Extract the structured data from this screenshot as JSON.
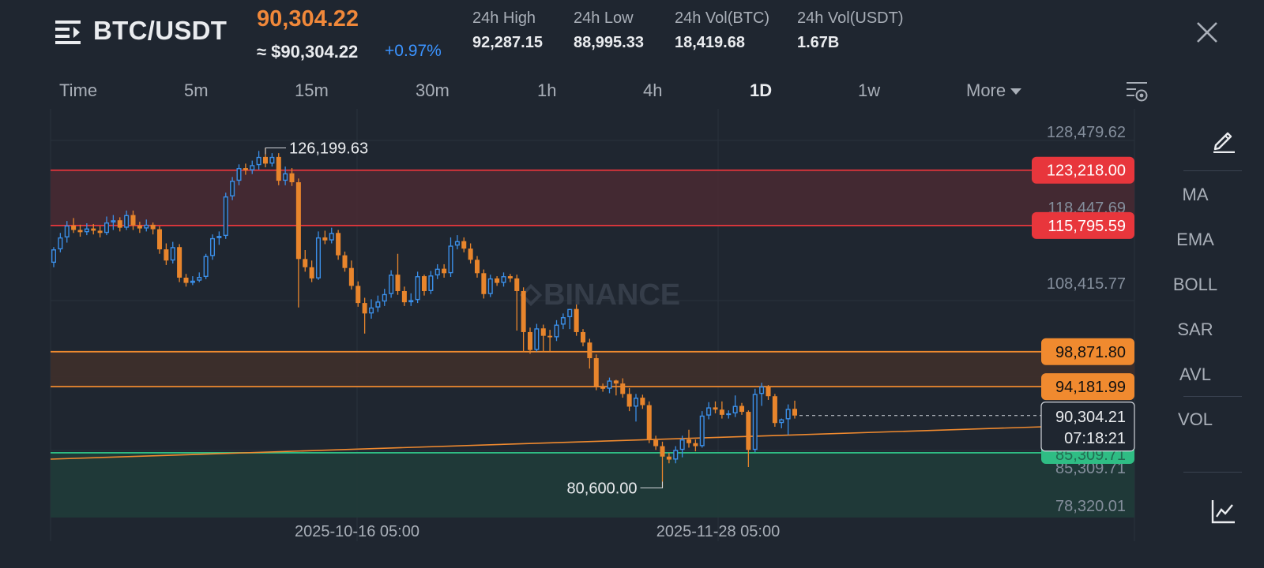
{
  "header": {
    "pair": "BTC/USDT",
    "price": "90,304.22",
    "price_usd": "≈ $90,304.22",
    "change": "+0.97%",
    "stats": [
      {
        "label": "24h High",
        "value": "92,287.15"
      },
      {
        "label": "24h Low",
        "value": "88,995.33"
      },
      {
        "label": "24h Vol(BTC)",
        "value": "18,419.68"
      },
      {
        "label": "24h Vol(USDT)",
        "value": "1.67B"
      }
    ]
  },
  "tabs": [
    "Time",
    "5m",
    "15m",
    "30m",
    "1h",
    "4h",
    "1D",
    "1w",
    "More"
  ],
  "active_tab": "1D",
  "side": {
    "items": [
      "MA",
      "EMA",
      "BOLL",
      "SAR",
      "AVL",
      "VOL"
    ]
  },
  "icons": {
    "menu": "menu-icon",
    "close": "close-icon",
    "settings": "chart-settings-icon",
    "pen": "pen-icon",
    "line": "line-chart-icon"
  },
  "colors": {
    "up": "#3b8fe8",
    "down": "#e8852c",
    "red_zone": "#e8363c",
    "orange_zone": "#f08a2f",
    "green_zone": "#2fbd84",
    "price_accent": "#f0883a"
  },
  "chart_data": {
    "type": "candlestick",
    "watermark": "BINANCE",
    "ylim": [
      78320.01,
      128479.62
    ],
    "y_ticks": [
      "128,479.62",
      "118,447.69",
      "108,415.77",
      "85,309.71",
      "78,320.01"
    ],
    "x_ticks": [
      "2025-10-16 05:00",
      "2025-11-28 05:00"
    ],
    "levels": [
      {
        "label": "123,218.00",
        "value": 123218.0,
        "color": "red"
      },
      {
        "label": "115,795.59",
        "value": 115795.59,
        "color": "red"
      },
      {
        "label": "98,871.80",
        "value": 98871.8,
        "color": "orange"
      },
      {
        "label": "94,181.99",
        "value": 94181.99,
        "color": "orange"
      }
    ],
    "current": {
      "price": "90,304.21",
      "countdown": "07:18:21",
      "value": 90304.21
    },
    "annotations": [
      {
        "label": "126,199.63",
        "value": 126199.63
      },
      {
        "label": "80,600.00",
        "value": 80600.0
      }
    ],
    "candles": [
      [
        110800,
        112600,
        110200,
        112900
      ],
      [
        112600,
        114200,
        112200,
        114800
      ],
      [
        114200,
        115800,
        113500,
        116400
      ],
      [
        115800,
        115200,
        114800,
        116800
      ],
      [
        115200,
        114900,
        114300,
        115900
      ],
      [
        114900,
        115400,
        114500,
        116100
      ],
      [
        115400,
        115100,
        114600,
        116000
      ],
      [
        115100,
        114800,
        114200,
        115700
      ],
      [
        114800,
        116200,
        114500,
        117000
      ],
      [
        116200,
        116500,
        115200,
        117200
      ],
      [
        116500,
        115500,
        115000,
        116900
      ],
      [
        115500,
        117200,
        115200,
        117800
      ],
      [
        117200,
        115800,
        115200,
        117800
      ],
      [
        115800,
        115400,
        114800,
        116300
      ],
      [
        115400,
        115900,
        115000,
        116600
      ],
      [
        115900,
        115300,
        114600,
        116200
      ],
      [
        115300,
        112600,
        112000,
        115700
      ],
      [
        112600,
        111100,
        110500,
        113400
      ],
      [
        111100,
        112900,
        110700,
        113600
      ],
      [
        112900,
        108800,
        108200,
        113300
      ],
      [
        108800,
        108100,
        107600,
        109300
      ],
      [
        108100,
        108400,
        107800,
        109000
      ],
      [
        108400,
        108900,
        108200,
        109500
      ],
      [
        108900,
        111700,
        108600,
        112000
      ],
      [
        111700,
        114100,
        111200,
        114600
      ],
      [
        114100,
        114400,
        113200,
        115000
      ],
      [
        114400,
        119700,
        114000,
        120200
      ],
      [
        119700,
        121800,
        119200,
        122300
      ],
      [
        121800,
        123500,
        121200,
        124000
      ],
      [
        123500,
        123200,
        122600,
        124100
      ],
      [
        123200,
        123900,
        122700,
        124500
      ],
      [
        123900,
        125000,
        123300,
        125800
      ],
      [
        125000,
        124100,
        123600,
        126199.63
      ],
      [
        124100,
        125000,
        123700,
        125500
      ],
      [
        125000,
        121800,
        121200,
        125500
      ],
      [
        121800,
        122800,
        121200,
        123700
      ],
      [
        122800,
        121600,
        121100,
        123500
      ],
      [
        121600,
        111300,
        104800,
        122100
      ],
      [
        111300,
        110200,
        109600,
        112500
      ],
      [
        110200,
        108700,
        108200,
        111100
      ],
      [
        108700,
        114200,
        108500,
        115000
      ],
      [
        114200,
        113800,
        113300,
        115100
      ],
      [
        113800,
        114800,
        113400,
        115500
      ],
      [
        114800,
        111800,
        111200,
        115200
      ],
      [
        111800,
        110100,
        109600,
        112300
      ],
      [
        110100,
        107700,
        107200,
        111100
      ],
      [
        107700,
        105400,
        104900,
        108300
      ],
      [
        105400,
        104000,
        101300,
        106100
      ],
      [
        104000,
        104800,
        103300,
        105900
      ],
      [
        104800,
        105600,
        104200,
        106400
      ],
      [
        105600,
        106600,
        105000,
        107300
      ],
      [
        106600,
        109200,
        106100,
        109800
      ],
      [
        109200,
        107000,
        106500,
        112000
      ],
      [
        107000,
        105500,
        105000,
        107600
      ],
      [
        105500,
        105800,
        105000,
        106700
      ],
      [
        105800,
        109000,
        105400,
        109600
      ],
      [
        109000,
        107000,
        106400,
        109200
      ],
      [
        107000,
        109100,
        106600,
        109700
      ],
      [
        109100,
        110000,
        108600,
        110600
      ],
      [
        110000,
        109400,
        108800,
        110600
      ],
      [
        109400,
        113100,
        108900,
        114200
      ],
      [
        113100,
        113700,
        112600,
        114500
      ],
      [
        113700,
        112700,
        112200,
        114200
      ],
      [
        112700,
        111200,
        110700,
        113400
      ],
      [
        111200,
        109400,
        108800,
        111700
      ],
      [
        109400,
        106600,
        106000,
        109900
      ],
      [
        106600,
        108700,
        106200,
        109200
      ],
      [
        108700,
        108100,
        107700,
        109000
      ],
      [
        108100,
        109000,
        107600,
        109500
      ],
      [
        109000,
        108700,
        108200,
        109300
      ],
      [
        108700,
        107000,
        101700,
        109200
      ],
      [
        107000,
        101500,
        98800,
        107500
      ],
      [
        101500,
        99100,
        98600,
        102100
      ],
      [
        99100,
        102000,
        98900,
        102600
      ],
      [
        102000,
        101000,
        98800,
        102500
      ],
      [
        101000,
        100800,
        98900,
        101800
      ],
      [
        100800,
        102500,
        100300,
        103100
      ],
      [
        102500,
        103500,
        101900,
        104000
      ],
      [
        103500,
        104600,
        101900,
        104600
      ],
      [
        104600,
        101500,
        101000,
        105200
      ],
      [
        101500,
        100100,
        99600,
        101900
      ],
      [
        100100,
        98000,
        96600,
        100600
      ],
      [
        98000,
        94200,
        93700,
        98500
      ],
      [
        94200,
        93900,
        93500,
        94600
      ],
      [
        93900,
        95000,
        93300,
        95400
      ],
      [
        95000,
        94600,
        93000,
        95100
      ],
      [
        94600,
        93200,
        92700,
        95300
      ],
      [
        93200,
        91500,
        90900,
        94000
      ],
      [
        91500,
        92700,
        89500,
        93200
      ],
      [
        92700,
        91700,
        91200,
        93100
      ],
      [
        91700,
        87000,
        86600,
        92200
      ],
      [
        87000,
        86200,
        85700,
        87600
      ],
      [
        86200,
        84800,
        80600,
        86800
      ],
      [
        84800,
        84400,
        83900,
        85300
      ],
      [
        84400,
        85700,
        83900,
        86200
      ],
      [
        85700,
        87100,
        84700,
        87600
      ],
      [
        87100,
        86600,
        86000,
        88400
      ],
      [
        86600,
        86200,
        85500,
        87100
      ],
      [
        86200,
        90300,
        86000,
        90900
      ],
      [
        90300,
        91400,
        89800,
        92100
      ],
      [
        91400,
        91100,
        90600,
        92200
      ],
      [
        91100,
        90400,
        89900,
        92200
      ],
      [
        90400,
        90600,
        89900,
        91000
      ],
      [
        90600,
        91600,
        90100,
        93000
      ],
      [
        91600,
        90800,
        90400,
        92000
      ],
      [
        90800,
        85700,
        83400,
        91000
      ],
      [
        85700,
        93200,
        85400,
        93900
      ],
      [
        93200,
        94200,
        91600,
        94700
      ],
      [
        94200,
        92900,
        92400,
        94400
      ],
      [
        92900,
        89300,
        88800,
        93200
      ],
      [
        89300,
        89800,
        88600,
        89900
      ],
      [
        89800,
        91200,
        87700,
        91800
      ],
      [
        91200,
        90304.21,
        89900,
        92300
      ]
    ]
  }
}
